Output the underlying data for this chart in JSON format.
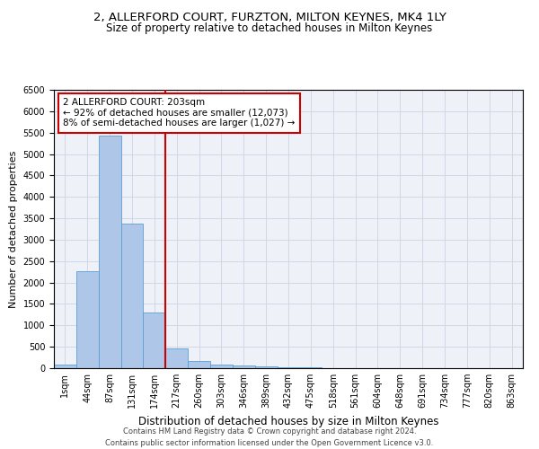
{
  "title_line1": "2, ALLERFORD COURT, FURZTON, MILTON KEYNES, MK4 1LY",
  "title_line2": "Size of property relative to detached houses in Milton Keynes",
  "xlabel": "Distribution of detached houses by size in Milton Keynes",
  "ylabel": "Number of detached properties",
  "footer_line1": "Contains HM Land Registry data © Crown copyright and database right 2024.",
  "footer_line2": "Contains public sector information licensed under the Open Government Licence v3.0.",
  "bar_labels": [
    "1sqm",
    "44sqm",
    "87sqm",
    "131sqm",
    "174sqm",
    "217sqm",
    "260sqm",
    "303sqm",
    "346sqm",
    "389sqm",
    "432sqm",
    "475sqm",
    "518sqm",
    "561sqm",
    "604sqm",
    "648sqm",
    "691sqm",
    "734sqm",
    "777sqm",
    "820sqm",
    "863sqm"
  ],
  "bar_values": [
    80,
    2270,
    5430,
    3380,
    1300,
    470,
    160,
    90,
    55,
    35,
    20,
    15,
    10,
    8,
    5,
    4,
    3,
    2,
    2,
    1,
    1
  ],
  "bar_color": "#aec6e8",
  "bar_edgecolor": "#5a9fd4",
  "vline_pos": 4.5,
  "annotation_text": "2 ALLERFORD COURT: 203sqm\n← 92% of detached houses are smaller (12,073)\n8% of semi-detached houses are larger (1,027) →",
  "annotation_box_color": "#ffffff",
  "annotation_box_edgecolor": "#cc0000",
  "vline_color": "#cc0000",
  "ylim": [
    0,
    6500
  ],
  "yticks": [
    0,
    500,
    1000,
    1500,
    2000,
    2500,
    3000,
    3500,
    4000,
    4500,
    5000,
    5500,
    6000,
    6500
  ],
  "grid_color": "#d0d8e8",
  "bg_color": "#eef2f8",
  "title1_fontsize": 9.5,
  "title2_fontsize": 8.5,
  "ylabel_fontsize": 8,
  "xlabel_fontsize": 8.5,
  "tick_fontsize": 7,
  "annot_fontsize": 7.5,
  "footer_fontsize": 6
}
